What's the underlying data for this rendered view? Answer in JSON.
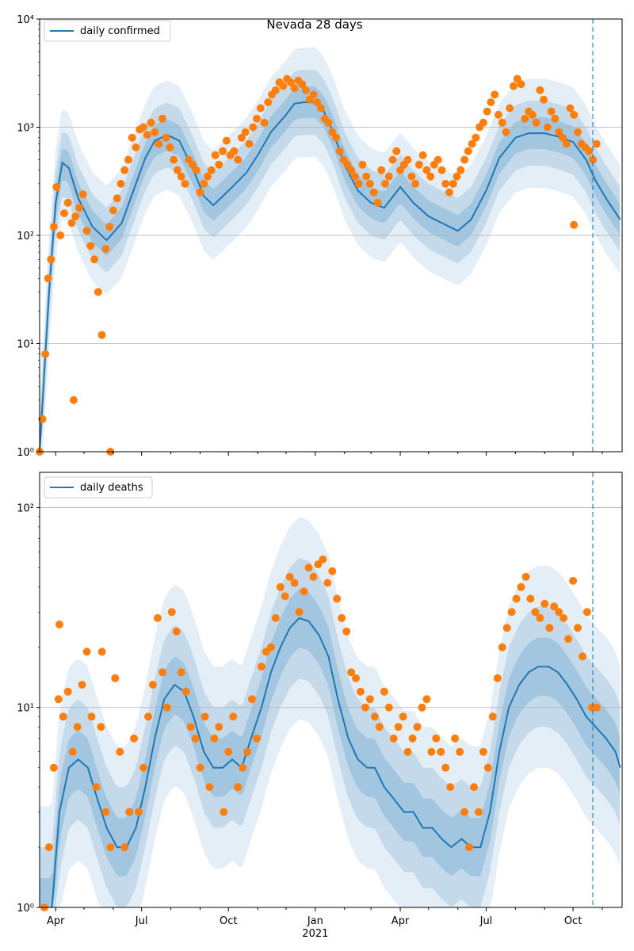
{
  "chart_data": [
    {
      "type": "line",
      "title": "Nevada 28 days",
      "yscale": "log",
      "ylim": [
        1,
        10000
      ],
      "ytick_values": [
        1,
        10,
        100,
        1000,
        10000
      ],
      "ytick_labels": [
        "10⁰",
        "10¹",
        "10²",
        "10³",
        "10⁴"
      ],
      "grid": "horizontal major",
      "legend": {
        "location": "upper left",
        "entries": [
          "daily confirmed"
        ]
      },
      "vline": "2021-10-22",
      "series": [
        {
          "name": "daily confirmed",
          "kind": "model median",
          "x": [
            "2020-03-15",
            "2020-03-25",
            "2020-04-01",
            "2020-04-08",
            "2020-04-15",
            "2020-04-25",
            "2020-05-10",
            "2020-05-25",
            "2020-06-10",
            "2020-06-25",
            "2020-07-05",
            "2020-07-15",
            "2020-07-28",
            "2020-08-10",
            "2020-08-25",
            "2020-09-05",
            "2020-09-15",
            "2020-09-25",
            "2020-10-05",
            "2020-10-20",
            "2020-11-01",
            "2020-11-15",
            "2020-12-01",
            "2020-12-10",
            "2020-12-20",
            "2021-01-01",
            "2021-01-10",
            "2021-01-20",
            "2021-02-01",
            "2021-02-15",
            "2021-03-01",
            "2021-03-15",
            "2021-04-01",
            "2021-04-15",
            "2021-05-01",
            "2021-05-15",
            "2021-06-01",
            "2021-06-15",
            "2021-07-01",
            "2021-07-15",
            "2021-08-01",
            "2021-08-15",
            "2021-09-01",
            "2021-09-15",
            "2021-10-01",
            "2021-10-15",
            "2021-10-25",
            "2021-11-05",
            "2021-11-20"
          ],
          "values": [
            1,
            30,
            200,
            470,
            420,
            220,
            120,
            90,
            130,
            300,
            520,
            750,
            850,
            750,
            400,
            230,
            190,
            230,
            280,
            380,
            550,
            900,
            1300,
            1650,
            1700,
            1700,
            1400,
            900,
            450,
            260,
            200,
            180,
            280,
            200,
            150,
            130,
            110,
            140,
            260,
            520,
            800,
            880,
            880,
            820,
            730,
            500,
            320,
            220,
            140
          ]
        },
        {
          "name": "daily confirmed",
          "kind": "observed",
          "x": [
            "2020-03-15",
            "2020-03-18",
            "2020-03-21",
            "2020-03-24",
            "2020-03-27",
            "2020-03-30",
            "2020-04-02",
            "2020-04-06",
            "2020-04-10",
            "2020-04-14",
            "2020-04-18",
            "2020-04-22",
            "2020-04-26",
            "2020-04-30",
            "2020-05-04",
            "2020-05-08",
            "2020-05-12",
            "2020-05-16",
            "2020-05-20",
            "2020-05-24",
            "2020-05-28",
            "2020-06-01",
            "2020-06-05",
            "2020-06-09",
            "2020-06-13",
            "2020-06-17",
            "2020-06-21",
            "2020-06-25",
            "2020-06-29",
            "2020-07-03",
            "2020-07-07",
            "2020-07-11",
            "2020-07-15",
            "2020-07-19",
            "2020-07-23",
            "2020-07-27",
            "2020-07-31",
            "2020-08-04",
            "2020-08-08",
            "2020-08-12",
            "2020-08-16",
            "2020-08-20",
            "2020-08-24",
            "2020-08-28",
            "2020-09-01",
            "2020-09-05",
            "2020-09-09",
            "2020-09-13",
            "2020-09-17",
            "2020-09-21",
            "2020-09-25",
            "2020-09-29",
            "2020-10-03",
            "2020-10-07",
            "2020-10-11",
            "2020-10-15",
            "2020-10-19",
            "2020-10-23",
            "2020-10-27",
            "2020-10-31",
            "2020-11-04",
            "2020-11-08",
            "2020-11-12",
            "2020-11-16",
            "2020-11-20",
            "2020-11-24",
            "2020-11-28",
            "2020-12-02",
            "2020-12-06",
            "2020-12-10",
            "2020-12-14",
            "2020-12-18",
            "2020-12-22",
            "2020-12-26",
            "2020-12-30",
            "2021-01-03",
            "2021-01-07",
            "2021-01-11",
            "2021-01-15",
            "2021-01-19",
            "2021-01-23",
            "2021-01-27",
            "2021-01-31",
            "2021-02-04",
            "2021-02-08",
            "2021-02-12",
            "2021-02-16",
            "2021-02-20",
            "2021-02-24",
            "2021-02-28",
            "2021-03-04",
            "2021-03-08",
            "2021-03-12",
            "2021-03-16",
            "2021-03-20",
            "2021-03-24",
            "2021-03-28",
            "2021-04-01",
            "2021-04-05",
            "2021-04-09",
            "2021-04-13",
            "2021-04-17",
            "2021-04-21",
            "2021-04-25",
            "2021-04-29",
            "2021-05-03",
            "2021-05-07",
            "2021-05-11",
            "2021-05-15",
            "2021-05-19",
            "2021-05-23",
            "2021-05-27",
            "2021-05-31",
            "2021-06-04",
            "2021-06-08",
            "2021-06-12",
            "2021-06-16",
            "2021-06-20",
            "2021-06-24",
            "2021-06-28",
            "2021-07-02",
            "2021-07-06",
            "2021-07-10",
            "2021-07-14",
            "2021-07-18",
            "2021-07-22",
            "2021-07-26",
            "2021-07-30",
            "2021-08-03",
            "2021-08-07",
            "2021-08-11",
            "2021-08-15",
            "2021-08-19",
            "2021-08-23",
            "2021-08-27",
            "2021-08-31",
            "2021-09-04",
            "2021-09-08",
            "2021-09-12",
            "2021-09-16",
            "2021-09-20",
            "2021-09-24",
            "2021-09-28",
            "2021-10-02",
            "2021-10-06",
            "2021-10-10",
            "2021-10-14",
            "2021-10-18",
            "2021-10-22",
            "2021-10-26"
          ],
          "values": [
            1,
            2,
            8,
            40,
            60,
            120,
            280,
            100,
            160,
            200,
            130,
            150,
            180,
            240,
            110,
            80,
            60,
            30,
            12,
            75,
            120,
            170,
            220,
            300,
            400,
            500,
            800,
            650,
            950,
            1000,
            850,
            1100,
            900,
            700,
            1200,
            800,
            650,
            500,
            400,
            350,
            300,
            500,
            450,
            400,
            250,
            300,
            350,
            400,
            550,
            450,
            600,
            750,
            550,
            600,
            500,
            800,
            900,
            700,
            1000,
            1200,
            1500,
            1100,
            1700,
            2000,
            2200,
            2600,
            2400,
            2800,
            2600,
            2300,
            2700,
            2500,
            2200,
            1800,
            2000,
            1700,
            1500,
            1200,
            1100,
            900,
            800,
            600,
            500,
            450,
            400,
            350,
            300,
            450,
            350,
            300,
            250,
            200,
            400,
            300,
            350,
            500,
            600,
            400,
            450,
            500,
            350,
            300,
            450,
            550,
            400,
            350,
            450,
            500,
            400,
            300,
            250,
            300,
            350,
            400,
            500,
            600,
            700,
            800,
            1000,
            1100,
            1400,
            1700,
            2000,
            1300,
            1100,
            900,
            1500,
            2400,
            2800,
            2500,
            1200,
            1400,
            1300,
            1100,
            2200,
            1800,
            1000,
            1400,
            1200,
            900,
            800,
            700,
            1500,
            1300,
            900,
            700,
            650,
            600,
            500,
            700
          ],
          "low_outliers": [
            {
              "x": "2020-04-20",
              "value": 3
            },
            {
              "x": "2020-05-29",
              "value": 1
            },
            {
              "x": "2021-10-02",
              "value": 125
            }
          ]
        }
      ]
    },
    {
      "type": "line",
      "yscale": "log",
      "ylim": [
        1,
        150
      ],
      "ytick_values": [
        1,
        10,
        100
      ],
      "ytick_labels": [
        "10⁰",
        "10¹",
        "10²"
      ],
      "grid": "horizontal major",
      "legend": {
        "location": "upper left",
        "entries": [
          "daily deaths"
        ]
      },
      "vline": "2021-10-22",
      "x_tick_labels": [
        "Apr",
        "Jul",
        "Oct",
        "Jan",
        "Apr",
        "Jul",
        "Oct"
      ],
      "x_year_label": "2021",
      "series": [
        {
          "name": "daily deaths",
          "kind": "model median",
          "x": [
            "2020-03-28",
            "2020-04-05",
            "2020-04-15",
            "2020-04-25",
            "2020-05-05",
            "2020-05-15",
            "2020-05-25",
            "2020-06-05",
            "2020-06-15",
            "2020-06-25",
            "2020-07-05",
            "2020-07-15",
            "2020-07-25",
            "2020-08-05",
            "2020-08-15",
            "2020-08-25",
            "2020-09-05",
            "2020-09-15",
            "2020-09-25",
            "2020-10-05",
            "2020-10-15",
            "2020-10-25",
            "2020-11-05",
            "2020-11-15",
            "2020-11-25",
            "2020-12-05",
            "2020-12-15",
            "2020-12-25",
            "2021-01-05",
            "2021-01-15",
            "2021-01-25",
            "2021-02-05",
            "2021-02-15",
            "2021-02-25",
            "2021-03-05",
            "2021-03-15",
            "2021-03-25",
            "2021-04-05",
            "2021-04-15",
            "2021-04-25",
            "2021-05-05",
            "2021-05-15",
            "2021-05-25",
            "2021-06-05",
            "2021-06-15",
            "2021-06-25",
            "2021-07-05",
            "2021-07-15",
            "2021-07-25",
            "2021-08-05",
            "2021-08-15",
            "2021-08-25",
            "2021-09-05",
            "2021-09-15",
            "2021-09-25",
            "2021-10-05",
            "2021-10-15",
            "2021-10-25",
            "2021-11-05",
            "2021-11-15",
            "2021-11-20"
          ],
          "values": [
            1,
            3,
            5,
            5.5,
            5,
            3.5,
            2.5,
            2,
            2,
            2.5,
            4,
            7,
            11,
            13,
            12,
            9,
            6,
            5,
            5,
            5.5,
            5,
            7,
            10,
            15,
            20,
            25,
            28,
            27,
            23,
            18,
            11,
            7,
            5.5,
            5,
            5,
            4,
            3.5,
            3,
            3,
            2.5,
            2.5,
            2.2,
            2,
            2.2,
            2,
            2,
            3,
            6,
            10,
            13,
            15,
            16,
            16,
            15,
            13,
            11,
            9,
            8,
            7,
            6,
            5
          ]
        },
        {
          "name": "daily deaths",
          "kind": "observed",
          "x": [
            "2020-03-20",
            "2020-03-25",
            "2020-03-30",
            "2020-04-04",
            "2020-04-09",
            "2020-04-14",
            "2020-04-19",
            "2020-04-24",
            "2020-04-29",
            "2020-05-04",
            "2020-05-09",
            "2020-05-14",
            "2020-05-19",
            "2020-05-24",
            "2020-05-29",
            "2020-06-03",
            "2020-06-08",
            "2020-06-13",
            "2020-06-18",
            "2020-06-23",
            "2020-06-28",
            "2020-07-03",
            "2020-07-08",
            "2020-07-13",
            "2020-07-18",
            "2020-07-23",
            "2020-07-28",
            "2020-08-02",
            "2020-08-07",
            "2020-08-12",
            "2020-08-17",
            "2020-08-22",
            "2020-08-27",
            "2020-09-01",
            "2020-09-06",
            "2020-09-11",
            "2020-09-16",
            "2020-09-21",
            "2020-09-26",
            "2020-10-01",
            "2020-10-06",
            "2020-10-11",
            "2020-10-16",
            "2020-10-21",
            "2020-10-26",
            "2020-10-31",
            "2020-11-05",
            "2020-11-10",
            "2020-11-15",
            "2020-11-20",
            "2020-11-25",
            "2020-11-30",
            "2020-12-05",
            "2020-12-10",
            "2020-12-15",
            "2020-12-20",
            "2020-12-25",
            "2020-12-30",
            "2021-01-04",
            "2021-01-09",
            "2021-01-14",
            "2021-01-19",
            "2021-01-24",
            "2021-01-29",
            "2021-02-03",
            "2021-02-08",
            "2021-02-13",
            "2021-02-18",
            "2021-02-23",
            "2021-02-28",
            "2021-03-05",
            "2021-03-10",
            "2021-03-15",
            "2021-03-20",
            "2021-03-25",
            "2021-03-30",
            "2021-04-04",
            "2021-04-09",
            "2021-04-14",
            "2021-04-19",
            "2021-04-24",
            "2021-04-29",
            "2021-05-04",
            "2021-05-09",
            "2021-05-14",
            "2021-05-19",
            "2021-05-24",
            "2021-05-29",
            "2021-06-03",
            "2021-06-08",
            "2021-06-13",
            "2021-06-18",
            "2021-06-23",
            "2021-06-28",
            "2021-07-03",
            "2021-07-08",
            "2021-07-13",
            "2021-07-18",
            "2021-07-23",
            "2021-07-28",
            "2021-08-02",
            "2021-08-07",
            "2021-08-12",
            "2021-08-17",
            "2021-08-22",
            "2021-08-27",
            "2021-09-01",
            "2021-09-06",
            "2021-09-11",
            "2021-09-16",
            "2021-09-21",
            "2021-09-26",
            "2021-10-01",
            "2021-10-06",
            "2021-10-11",
            "2021-10-16",
            "2021-10-21",
            "2021-10-26"
          ],
          "values": [
            1,
            2,
            5,
            11,
            9,
            12,
            6,
            8,
            13,
            19,
            9,
            4,
            8,
            3,
            2,
            14,
            6,
            2,
            3,
            7,
            3,
            5,
            9,
            13,
            28,
            15,
            10,
            30,
            24,
            15,
            12,
            8,
            7,
            5,
            9,
            4,
            7,
            8,
            3,
            6,
            9,
            4,
            5,
            6,
            11,
            7,
            16,
            19,
            20,
            28,
            40,
            36,
            45,
            42,
            30,
            38,
            50,
            45,
            52,
            55,
            42,
            48,
            35,
            28,
            24,
            15,
            14,
            12,
            10,
            11,
            9,
            8,
            12,
            10,
            7,
            8,
            9,
            6,
            7,
            8,
            10,
            11,
            6,
            7,
            6,
            5,
            4,
            7,
            6,
            3,
            2,
            4,
            3,
            6,
            5,
            9,
            14,
            20,
            25,
            30,
            35,
            40,
            45,
            35,
            30,
            28,
            33,
            25,
            32,
            30,
            28,
            22,
            43,
            25,
            18,
            30,
            10,
            10
          ],
          "low_outliers": [
            {
              "x": "2020-04-05",
              "value": 26
            },
            {
              "x": "2020-05-20",
              "value": 19
            }
          ]
        }
      ]
    }
  ]
}
